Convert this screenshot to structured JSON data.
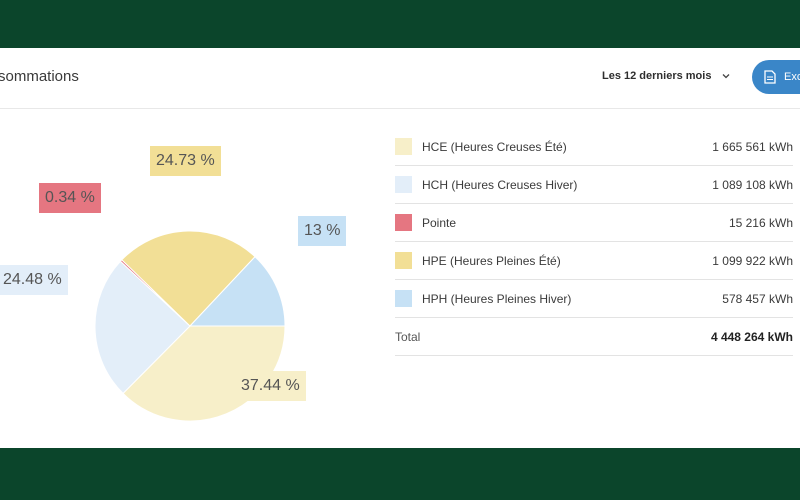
{
  "header": {
    "title": "sommations",
    "period_label": "Les 12 derniers mois",
    "export_label": "Exc"
  },
  "pie": {
    "labels": {
      "hce": "37.44 %",
      "hch": "24.48 %",
      "pointe": "0.34 %",
      "hpe": "24.73 %",
      "hph": "13 %"
    }
  },
  "legend": {
    "items": [
      {
        "name": "HCE (Heures Creuses Été)",
        "value": "1 665 561 kWh",
        "color": "#f7efc9"
      },
      {
        "name": "HCH (Heures Creuses Hiver)",
        "value": "1 089 108 kWh",
        "color": "#e3eef9"
      },
      {
        "name": "Pointe",
        "value": "15 216 kWh",
        "color": "#e57681"
      },
      {
        "name": "HPE (Heures Pleines Été)",
        "value": "1 099 922 kWh",
        "color": "#f2df96"
      },
      {
        "name": "HPH (Heures Pleines Hiver)",
        "value": "578 457 kWh",
        "color": "#c6e1f5"
      }
    ],
    "total_label": "Total",
    "total_value": "4 448 264 kWh"
  },
  "chart_data": {
    "type": "pie",
    "categories": [
      "HCE (Heures Creuses Été)",
      "HCH (Heures Creuses Hiver)",
      "Pointe",
      "HPE (Heures Pleines Été)",
      "HPH (Heures Pleines Hiver)"
    ],
    "values": [
      37.44,
      24.48,
      0.34,
      24.73,
      13
    ],
    "colors": [
      "#f7efc9",
      "#e3eef9",
      "#e57681",
      "#f2df96",
      "#c6e1f5"
    ]
  }
}
